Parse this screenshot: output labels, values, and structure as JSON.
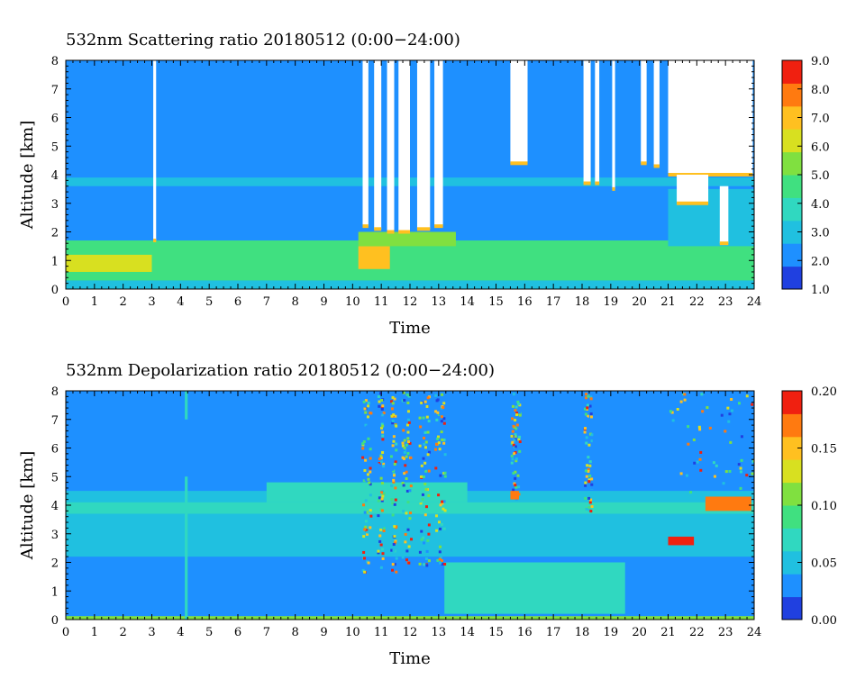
{
  "palette": [
    "#2040e0",
    "#1e90ff",
    "#20c0e0",
    "#30d8c0",
    "#40e080",
    "#80e040",
    "#d8e020",
    "#ffc020",
    "#ff7a10",
    "#f02010"
  ],
  "chart_data": [
    {
      "type": "heatmap",
      "title": "532nm Scattering ratio  20180512 (0:00−24:00)",
      "xlabel": "Time",
      "ylabel": "Altitude [km]",
      "xlim": [
        0,
        24
      ],
      "ylim": [
        0,
        8
      ],
      "x_ticks": [
        "0",
        "1",
        "2",
        "3",
        "4",
        "5",
        "6",
        "7",
        "8",
        "9",
        "10",
        "11",
        "12",
        "13",
        "14",
        "15",
        "16",
        "17",
        "18",
        "19",
        "20",
        "21",
        "22",
        "23",
        "24"
      ],
      "y_ticks": [
        "0",
        "1",
        "2",
        "3",
        "4",
        "5",
        "6",
        "7",
        "8"
      ],
      "colorbar": {
        "min": 1.0,
        "max": 9.0,
        "ticks": [
          "1.0",
          "2.0",
          "3.0",
          "4.0",
          "5.0",
          "6.0",
          "7.0",
          "8.0",
          "9.0"
        ]
      },
      "layers": [
        {
          "t0": 0,
          "t1": 24,
          "z0": 0,
          "z1": 8,
          "v": 2.0
        },
        {
          "t0": 0,
          "t1": 24,
          "z0": 0.3,
          "z1": 1.7,
          "v": 4.6
        },
        {
          "t0": 0,
          "t1": 3,
          "z0": 0.6,
          "z1": 1.2,
          "v": 6.2
        },
        {
          "t0": 10.2,
          "t1": 11.3,
          "z0": 0.7,
          "z1": 1.5,
          "v": 7.2
        },
        {
          "t0": 10.2,
          "t1": 13.6,
          "z0": 1.5,
          "z1": 2.0,
          "v": 5.4
        },
        {
          "t0": 0,
          "t1": 24,
          "z0": 3.6,
          "z1": 3.9,
          "v": 2.6
        },
        {
          "t0": 0,
          "t1": 24,
          "z0": 0,
          "z1": 0.3,
          "v": 2.8
        },
        {
          "t0": 21,
          "t1": 24,
          "z0": 1.5,
          "z1": 3.5,
          "v": 3.2
        }
      ],
      "cloud_blanks": [
        {
          "t0": 3.05,
          "t1": 3.15,
          "z0": 1.7,
          "z1": 8
        },
        {
          "t0": 10.35,
          "t1": 10.55,
          "z0": 2.2,
          "z1": 8
        },
        {
          "t0": 10.75,
          "t1": 11.0,
          "z0": 2.1,
          "z1": 8
        },
        {
          "t0": 11.2,
          "t1": 11.45,
          "z0": 2.0,
          "z1": 8
        },
        {
          "t0": 11.6,
          "t1": 12.0,
          "z0": 2.0,
          "z1": 8
        },
        {
          "t0": 12.25,
          "t1": 12.7,
          "z0": 2.1,
          "z1": 8
        },
        {
          "t0": 12.85,
          "t1": 13.15,
          "z0": 2.2,
          "z1": 8
        },
        {
          "t0": 15.5,
          "t1": 16.1,
          "z0": 4.4,
          "z1": 8
        },
        {
          "t0": 18.05,
          "t1": 18.3,
          "z0": 3.7,
          "z1": 8
        },
        {
          "t0": 18.45,
          "t1": 18.6,
          "z0": 3.7,
          "z1": 8
        },
        {
          "t0": 19.05,
          "t1": 19.15,
          "z0": 3.5,
          "z1": 8
        },
        {
          "t0": 20.05,
          "t1": 20.25,
          "z0": 4.4,
          "z1": 8
        },
        {
          "t0": 20.5,
          "t1": 20.7,
          "z0": 4.3,
          "z1": 8
        },
        {
          "t0": 21.0,
          "t1": 23.95,
          "z0": 4.0,
          "z1": 8
        },
        {
          "t0": 21.3,
          "t1": 22.4,
          "z0": 3.0,
          "z1": 4.0
        },
        {
          "t0": 22.8,
          "t1": 23.1,
          "z0": 1.6,
          "z1": 3.6
        }
      ]
    },
    {
      "type": "heatmap",
      "title": "532nm Depolarization ratio  20180512 (0:00−24:00)",
      "xlabel": "Time",
      "ylabel": "Altitude [km]",
      "xlim": [
        0,
        24
      ],
      "ylim": [
        0,
        8
      ],
      "x_ticks": [
        "0",
        "1",
        "2",
        "3",
        "4",
        "5",
        "6",
        "7",
        "8",
        "9",
        "10",
        "11",
        "12",
        "13",
        "14",
        "15",
        "16",
        "17",
        "18",
        "19",
        "20",
        "21",
        "22",
        "23",
        "24"
      ],
      "y_ticks": [
        "0",
        "1",
        "2",
        "3",
        "4",
        "5",
        "6",
        "7",
        "8"
      ],
      "colorbar": {
        "min": 0.0,
        "max": 0.2,
        "ticks": [
          "0.00",
          "0.05",
          "0.10",
          "0.15",
          "0.20"
        ]
      },
      "layers": [
        {
          "t0": 0,
          "t1": 24,
          "z0": 0,
          "z1": 8,
          "v": 0.035
        },
        {
          "t0": 0,
          "t1": 24,
          "z0": 2.2,
          "z1": 4.5,
          "v": 0.05
        },
        {
          "t0": 0,
          "t1": 24,
          "z0": 3.7,
          "z1": 4.1,
          "v": 0.07
        },
        {
          "t0": 7,
          "t1": 14,
          "z0": 4.1,
          "z1": 4.8,
          "v": 0.065
        },
        {
          "t0": 13.2,
          "t1": 19.5,
          "z0": 0.2,
          "z1": 2.0,
          "v": 0.065
        },
        {
          "t0": 0,
          "t1": 24,
          "z0": 0.0,
          "z1": 0.12,
          "v": 0.11
        },
        {
          "t0": 4.15,
          "t1": 4.25,
          "z0": 0,
          "z1": 8,
          "v": 0.06
        },
        {
          "t0": 0,
          "t1": 13,
          "z0": 5.0,
          "z1": 7.0,
          "v": 0.025
        }
      ],
      "noisy_cols": [
        {
          "t0": 10.3,
          "t1": 10.6,
          "z0": 1.7,
          "z1": 8
        },
        {
          "t0": 10.85,
          "t1": 11.05,
          "z0": 1.7,
          "z1": 8
        },
        {
          "t0": 11.3,
          "t1": 11.5,
          "z0": 1.7,
          "z1": 8
        },
        {
          "t0": 11.7,
          "t1": 12.0,
          "z0": 1.9,
          "z1": 8
        },
        {
          "t0": 12.3,
          "t1": 12.65,
          "z0": 1.9,
          "z1": 8
        },
        {
          "t0": 12.85,
          "t1": 13.2,
          "z0": 1.9,
          "z1": 8
        },
        {
          "t0": 15.5,
          "t1": 15.8,
          "z0": 4.2,
          "z1": 8
        },
        {
          "t0": 18.05,
          "t1": 18.3,
          "z0": 3.8,
          "z1": 8
        },
        {
          "t0": 21.0,
          "t1": 24,
          "z0": 4.5,
          "z1": 8
        }
      ],
      "high_layers": [
        {
          "t0": 21.0,
          "t1": 21.9,
          "z0": 2.6,
          "z1": 2.9,
          "v": 0.19
        },
        {
          "t0": 22.3,
          "t1": 23.9,
          "z0": 3.8,
          "z1": 4.3,
          "v": 0.17
        },
        {
          "t0": 15.5,
          "t1": 15.8,
          "z0": 4.2,
          "z1": 4.5,
          "v": 0.17
        }
      ]
    }
  ]
}
